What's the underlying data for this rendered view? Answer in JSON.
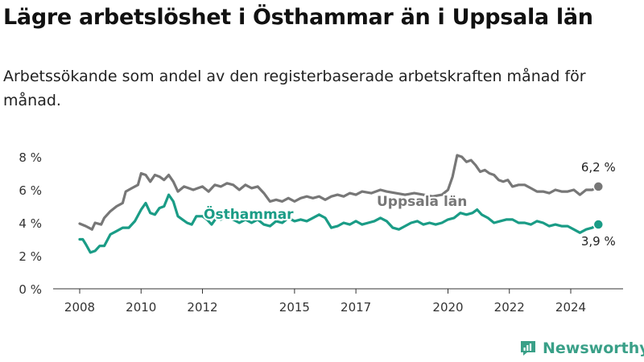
{
  "title": "Lägre arbetslöshet i Östhammar än i Uppsala län",
  "subtitle": "Arbetssökande som andel av den registerbaserade arbetskraften månad för månad.",
  "brand": {
    "name": "Newsworthy",
    "color": "#3aa088"
  },
  "chart_data": {
    "type": "line",
    "ylim": [
      0,
      8
    ],
    "yticks": [
      {
        "v": 0,
        "label": "0 %"
      },
      {
        "v": 2,
        "label": "2 %"
      },
      {
        "v": 4,
        "label": "4 %"
      },
      {
        "v": 6,
        "label": "6 %"
      },
      {
        "v": 8,
        "label": "8 %"
      }
    ],
    "xlim": [
      2007.5,
      2025.6
    ],
    "xticks": [
      "2008",
      "2010",
      "2012",
      "2015",
      "2017",
      "2020",
      "2022",
      "2024"
    ],
    "grid": false,
    "series": [
      {
        "name": "Uppsala län",
        "color": "#777777",
        "end_label": "6,2 %",
        "points": [
          [
            2008.0,
            3.95
          ],
          [
            2008.2,
            3.8
          ],
          [
            2008.4,
            3.6
          ],
          [
            2008.5,
            4.0
          ],
          [
            2008.7,
            3.9
          ],
          [
            2008.8,
            4.3
          ],
          [
            2009.0,
            4.7
          ],
          [
            2009.2,
            5.0
          ],
          [
            2009.4,
            5.2
          ],
          [
            2009.5,
            5.9
          ],
          [
            2009.7,
            6.1
          ],
          [
            2009.9,
            6.3
          ],
          [
            2010.0,
            7.0
          ],
          [
            2010.15,
            6.9
          ],
          [
            2010.3,
            6.5
          ],
          [
            2010.45,
            6.9
          ],
          [
            2010.6,
            6.8
          ],
          [
            2010.75,
            6.6
          ],
          [
            2010.9,
            6.9
          ],
          [
            2011.05,
            6.5
          ],
          [
            2011.2,
            5.9
          ],
          [
            2011.4,
            6.2
          ],
          [
            2011.55,
            6.1
          ],
          [
            2011.7,
            6.0
          ],
          [
            2011.85,
            6.1
          ],
          [
            2012.0,
            6.2
          ],
          [
            2012.2,
            5.9
          ],
          [
            2012.4,
            6.3
          ],
          [
            2012.6,
            6.2
          ],
          [
            2012.8,
            6.4
          ],
          [
            2013.0,
            6.3
          ],
          [
            2013.2,
            6.0
          ],
          [
            2013.4,
            6.3
          ],
          [
            2013.6,
            6.1
          ],
          [
            2013.8,
            6.2
          ],
          [
            2014.0,
            5.8
          ],
          [
            2014.2,
            5.3
          ],
          [
            2014.4,
            5.4
          ],
          [
            2014.6,
            5.3
          ],
          [
            2014.8,
            5.5
          ],
          [
            2015.0,
            5.3
          ],
          [
            2015.2,
            5.5
          ],
          [
            2015.4,
            5.6
          ],
          [
            2015.6,
            5.5
          ],
          [
            2015.8,
            5.6
          ],
          [
            2016.0,
            5.4
          ],
          [
            2016.2,
            5.6
          ],
          [
            2016.4,
            5.7
          ],
          [
            2016.6,
            5.6
          ],
          [
            2016.8,
            5.8
          ],
          [
            2017.0,
            5.7
          ],
          [
            2017.2,
            5.9
          ],
          [
            2017.5,
            5.8
          ],
          [
            2017.8,
            6.0
          ],
          [
            2018.0,
            5.9
          ],
          [
            2018.3,
            5.8
          ],
          [
            2018.6,
            5.7
          ],
          [
            2018.9,
            5.8
          ],
          [
            2019.2,
            5.7
          ],
          [
            2019.5,
            5.6
          ],
          [
            2019.8,
            5.7
          ],
          [
            2020.0,
            6.0
          ],
          [
            2020.15,
            6.8
          ],
          [
            2020.3,
            8.1
          ],
          [
            2020.45,
            8.0
          ],
          [
            2020.6,
            7.7
          ],
          [
            2020.75,
            7.8
          ],
          [
            2020.9,
            7.5
          ],
          [
            2021.05,
            7.1
          ],
          [
            2021.2,
            7.2
          ],
          [
            2021.35,
            7.0
          ],
          [
            2021.5,
            6.9
          ],
          [
            2021.65,
            6.6
          ],
          [
            2021.8,
            6.5
          ],
          [
            2021.95,
            6.6
          ],
          [
            2022.1,
            6.2
          ],
          [
            2022.3,
            6.3
          ],
          [
            2022.5,
            6.3
          ],
          [
            2022.7,
            6.1
          ],
          [
            2022.9,
            5.9
          ],
          [
            2023.1,
            5.9
          ],
          [
            2023.3,
            5.8
          ],
          [
            2023.5,
            6.0
          ],
          [
            2023.7,
            5.9
          ],
          [
            2023.9,
            5.9
          ],
          [
            2024.1,
            6.0
          ],
          [
            2024.3,
            5.7
          ],
          [
            2024.5,
            6.0
          ],
          [
            2024.7,
            6.0
          ],
          [
            2024.9,
            6.2
          ]
        ]
      },
      {
        "name": "Östhammar",
        "color": "#1a9c86",
        "end_label": "3,9 %",
        "points": [
          [
            2008.0,
            3.0
          ],
          [
            2008.1,
            3.0
          ],
          [
            2008.2,
            2.7
          ],
          [
            2008.35,
            2.2
          ],
          [
            2008.5,
            2.3
          ],
          [
            2008.65,
            2.6
          ],
          [
            2008.8,
            2.6
          ],
          [
            2009.0,
            3.3
          ],
          [
            2009.2,
            3.5
          ],
          [
            2009.4,
            3.7
          ],
          [
            2009.6,
            3.7
          ],
          [
            2009.8,
            4.1
          ],
          [
            2010.0,
            4.8
          ],
          [
            2010.15,
            5.2
          ],
          [
            2010.3,
            4.6
          ],
          [
            2010.45,
            4.5
          ],
          [
            2010.6,
            4.9
          ],
          [
            2010.75,
            5.0
          ],
          [
            2010.9,
            5.7
          ],
          [
            2011.05,
            5.3
          ],
          [
            2011.2,
            4.4
          ],
          [
            2011.35,
            4.2
          ],
          [
            2011.5,
            4.0
          ],
          [
            2011.65,
            3.9
          ],
          [
            2011.8,
            4.4
          ],
          [
            2012.0,
            4.4
          ],
          [
            2012.15,
            4.2
          ],
          [
            2012.3,
            3.9
          ],
          [
            2012.45,
            4.3
          ],
          [
            2012.6,
            4.2
          ],
          [
            2012.8,
            4.5
          ],
          [
            2013.0,
            4.2
          ],
          [
            2013.2,
            4.0
          ],
          [
            2013.4,
            4.2
          ],
          [
            2013.6,
            4.0
          ],
          [
            2013.8,
            4.2
          ],
          [
            2014.0,
            3.9
          ],
          [
            2014.2,
            3.8
          ],
          [
            2014.4,
            4.1
          ],
          [
            2014.6,
            4.0
          ],
          [
            2014.8,
            4.3
          ],
          [
            2015.0,
            4.1
          ],
          [
            2015.2,
            4.2
          ],
          [
            2015.4,
            4.1
          ],
          [
            2015.6,
            4.3
          ],
          [
            2015.8,
            4.5
          ],
          [
            2016.0,
            4.3
          ],
          [
            2016.2,
            3.7
          ],
          [
            2016.4,
            3.8
          ],
          [
            2016.6,
            4.0
          ],
          [
            2016.8,
            3.9
          ],
          [
            2017.0,
            4.1
          ],
          [
            2017.2,
            3.9
          ],
          [
            2017.4,
            4.0
          ],
          [
            2017.6,
            4.1
          ],
          [
            2017.8,
            4.3
          ],
          [
            2018.0,
            4.1
          ],
          [
            2018.2,
            3.7
          ],
          [
            2018.4,
            3.6
          ],
          [
            2018.6,
            3.8
          ],
          [
            2018.8,
            4.0
          ],
          [
            2019.0,
            4.1
          ],
          [
            2019.2,
            3.9
          ],
          [
            2019.4,
            4.0
          ],
          [
            2019.6,
            3.9
          ],
          [
            2019.8,
            4.0
          ],
          [
            2020.0,
            4.2
          ],
          [
            2020.2,
            4.3
          ],
          [
            2020.4,
            4.6
          ],
          [
            2020.6,
            4.5
          ],
          [
            2020.8,
            4.6
          ],
          [
            2020.95,
            4.8
          ],
          [
            2021.1,
            4.5
          ],
          [
            2021.3,
            4.3
          ],
          [
            2021.5,
            4.0
          ],
          [
            2021.7,
            4.1
          ],
          [
            2021.9,
            4.2
          ],
          [
            2022.1,
            4.2
          ],
          [
            2022.3,
            4.0
          ],
          [
            2022.5,
            4.0
          ],
          [
            2022.7,
            3.9
          ],
          [
            2022.9,
            4.1
          ],
          [
            2023.1,
            4.0
          ],
          [
            2023.3,
            3.8
          ],
          [
            2023.5,
            3.9
          ],
          [
            2023.7,
            3.8
          ],
          [
            2023.9,
            3.8
          ],
          [
            2024.1,
            3.6
          ],
          [
            2024.3,
            3.4
          ],
          [
            2024.5,
            3.6
          ],
          [
            2024.7,
            3.7
          ],
          [
            2024.9,
            3.9
          ]
        ]
      }
    ],
    "inline_labels": [
      {
        "series": "Uppsala län",
        "text": "Uppsala län"
      },
      {
        "series": "Östhammar",
        "text": "Östhammar"
      }
    ]
  }
}
